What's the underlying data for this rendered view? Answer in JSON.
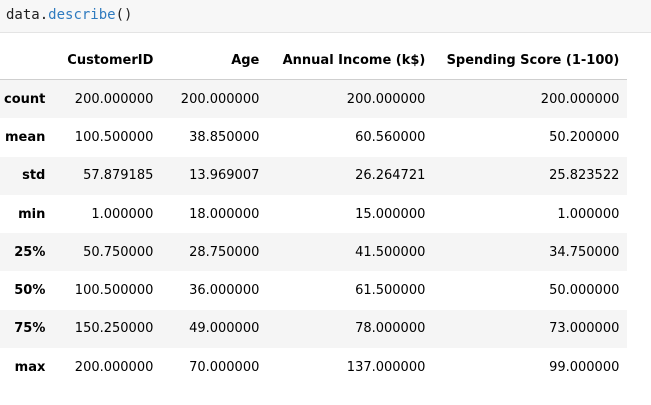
{
  "code": {
    "object": "data",
    "dot": ".",
    "method": "describe",
    "parens": "()"
  },
  "table": {
    "index_header": "",
    "columns": [
      "CustomerID",
      "Age",
      "Annual Income (k$)",
      "Spending Score (1-100)"
    ],
    "rows": [
      {
        "label": "count",
        "values": [
          "200.000000",
          "200.000000",
          "200.000000",
          "200.000000"
        ]
      },
      {
        "label": "mean",
        "values": [
          "100.500000",
          "38.850000",
          "60.560000",
          "50.200000"
        ]
      },
      {
        "label": "std",
        "values": [
          "57.879185",
          "13.969007",
          "26.264721",
          "25.823522"
        ]
      },
      {
        "label": "min",
        "values": [
          "1.000000",
          "18.000000",
          "15.000000",
          "1.000000"
        ]
      },
      {
        "label": "25%",
        "values": [
          "50.750000",
          "28.750000",
          "41.500000",
          "34.750000"
        ]
      },
      {
        "label": "50%",
        "values": [
          "100.500000",
          "36.000000",
          "61.500000",
          "50.000000"
        ]
      },
      {
        "label": "75%",
        "values": [
          "150.250000",
          "49.000000",
          "78.000000",
          "73.000000"
        ]
      },
      {
        "label": "max",
        "values": [
          "200.000000",
          "70.000000",
          "137.000000",
          "99.000000"
        ]
      }
    ]
  }
}
